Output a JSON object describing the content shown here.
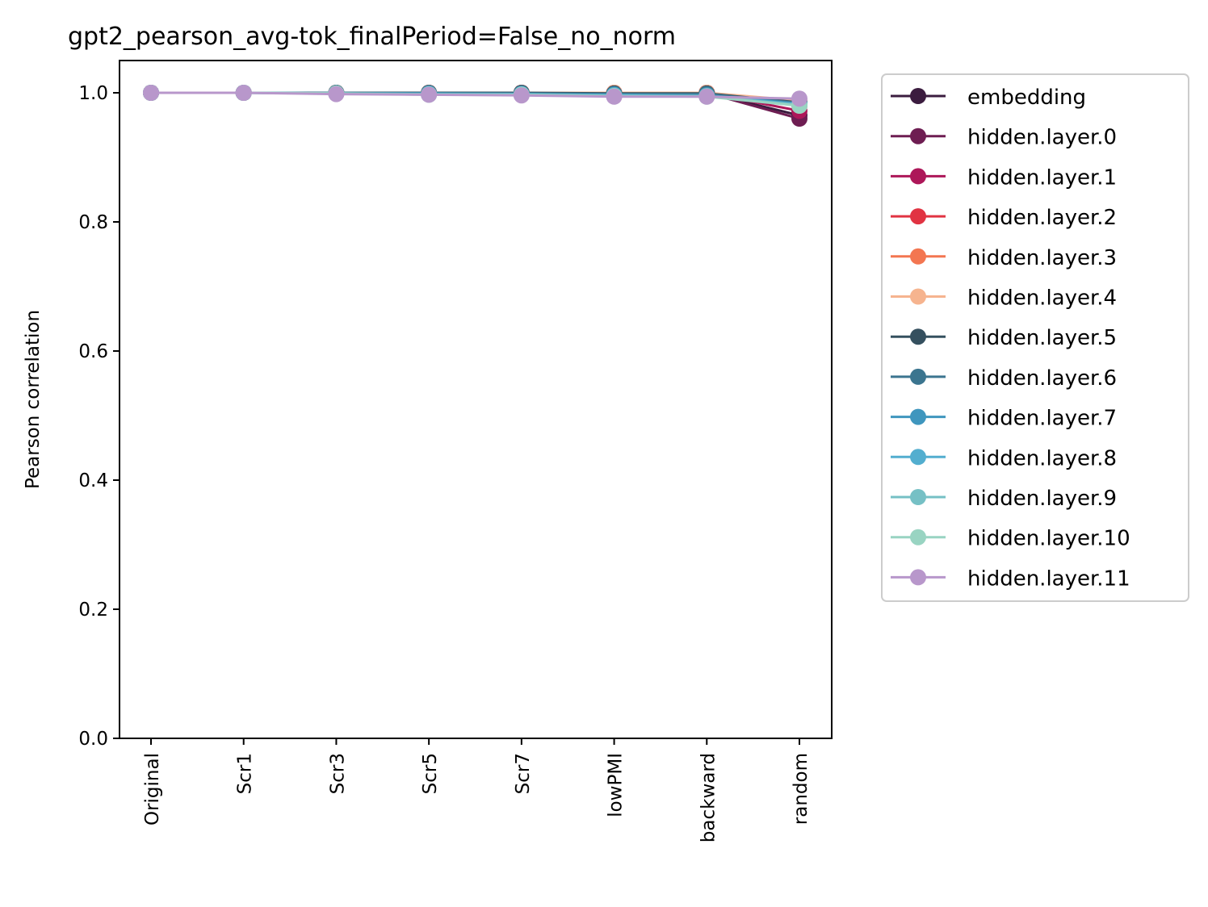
{
  "chart_data": {
    "type": "line",
    "title": "gpt2_pearson_avg-tok_finalPeriod=False_no_norm",
    "xlabel": "",
    "ylabel": "Pearson correlation",
    "categories": [
      "Original",
      "Scr1",
      "Scr3",
      "Scr5",
      "Scr7",
      "lowPMI",
      "backward",
      "random"
    ],
    "ylim": [
      0.0,
      1.05
    ],
    "yticks": [
      "0.0",
      "0.2",
      "0.4",
      "0.6",
      "0.8",
      "1.0"
    ],
    "grid": false,
    "legend_position": "outside-right",
    "series": [
      {
        "name": "embedding",
        "color": "#3b1c3f",
        "values": [
          1.0,
          1.0,
          1.0,
          1.0,
          1.0,
          1.0,
          1.0,
          0.965
        ]
      },
      {
        "name": "hidden.layer.0",
        "color": "#6e1d52",
        "values": [
          1.0,
          1.0,
          1.0,
          1.0,
          1.0,
          1.0,
          1.0,
          0.96
        ]
      },
      {
        "name": "hidden.layer.1",
        "color": "#ad1759",
        "values": [
          1.0,
          1.0,
          1.0,
          1.0,
          1.0,
          1.0,
          1.0,
          0.972
        ]
      },
      {
        "name": "hidden.layer.2",
        "color": "#e13342",
        "values": [
          1.0,
          1.0,
          1.0,
          1.0,
          1.0,
          1.0,
          1.0,
          0.98
        ]
      },
      {
        "name": "hidden.layer.3",
        "color": "#f37651",
        "values": [
          1.0,
          1.0,
          1.0,
          1.0,
          1.0,
          1.0,
          1.0,
          0.985
        ]
      },
      {
        "name": "hidden.layer.4",
        "color": "#f6b48f",
        "values": [
          1.0,
          1.0,
          1.0,
          1.0,
          1.0,
          1.0,
          1.0,
          0.988
        ]
      },
      {
        "name": "hidden.layer.5",
        "color": "#35505f",
        "values": [
          1.0,
          1.0,
          1.0,
          1.0,
          1.0,
          0.999,
          0.999,
          0.985
        ]
      },
      {
        "name": "hidden.layer.6",
        "color": "#3b758f",
        "values": [
          1.0,
          1.0,
          1.0,
          0.999,
          0.999,
          0.998,
          0.998,
          0.984
        ]
      },
      {
        "name": "hidden.layer.7",
        "color": "#3f96be",
        "values": [
          1.0,
          1.0,
          0.999,
          0.999,
          0.998,
          0.997,
          0.996,
          0.983
        ]
      },
      {
        "name": "hidden.layer.8",
        "color": "#53aecf",
        "values": [
          1.0,
          1.0,
          0.999,
          0.998,
          0.998,
          0.996,
          0.995,
          0.982
        ]
      },
      {
        "name": "hidden.layer.9",
        "color": "#76c0c5",
        "values": [
          1.0,
          1.0,
          0.999,
          0.998,
          0.997,
          0.995,
          0.995,
          0.981
        ]
      },
      {
        "name": "hidden.layer.10",
        "color": "#99d4c2",
        "values": [
          1.0,
          1.0,
          0.999,
          0.997,
          0.997,
          0.995,
          0.994,
          0.98
        ]
      },
      {
        "name": "hidden.layer.11",
        "color": "#b897cb",
        "values": [
          1.0,
          1.0,
          0.998,
          0.997,
          0.996,
          0.994,
          0.994,
          0.991
        ]
      }
    ]
  }
}
